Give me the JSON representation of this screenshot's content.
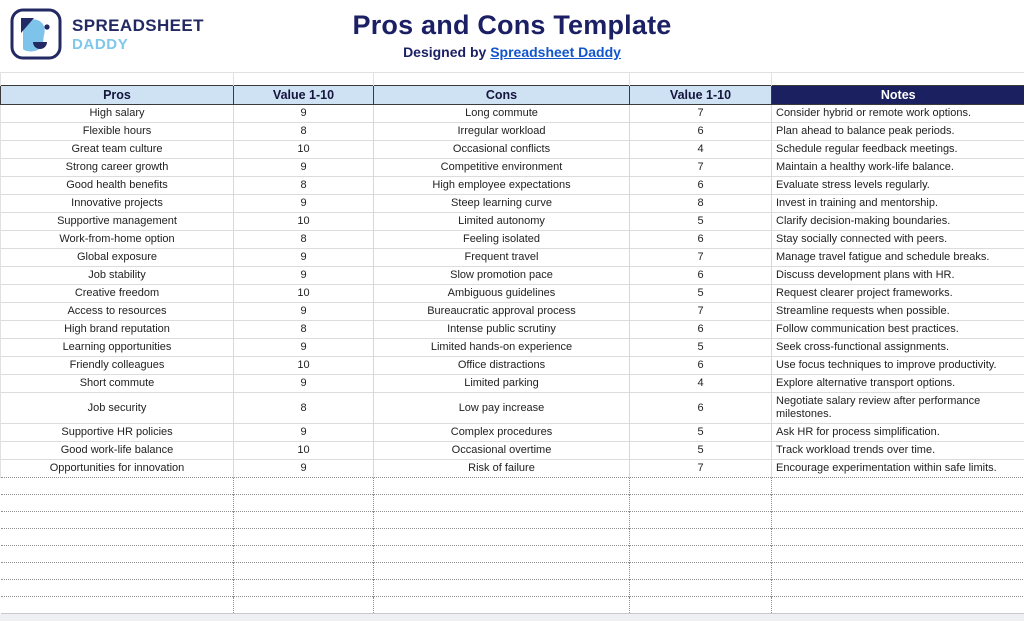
{
  "brand": {
    "line1": "SPREADSHEET",
    "line2": "DADDY",
    "logo": "dog-face-icon"
  },
  "header": {
    "title": "Pros and Cons Template",
    "designed_prefix": "Designed by ",
    "designed_link": "Spreadsheet Daddy"
  },
  "table": {
    "columns": [
      "Pros",
      "Value 1-10",
      "Cons",
      "Value 1-10",
      "Notes"
    ],
    "rows": [
      {
        "pro": "High salary",
        "pro_value": "9",
        "con": "Long commute",
        "con_value": "7",
        "note": "Consider hybrid or remote work options."
      },
      {
        "pro": "Flexible hours",
        "pro_value": "8",
        "con": "Irregular workload",
        "con_value": "6",
        "note": "Plan ahead to balance peak periods."
      },
      {
        "pro": "Great team culture",
        "pro_value": "10",
        "con": "Occasional conflicts",
        "con_value": "4",
        "note": "Schedule regular feedback meetings."
      },
      {
        "pro": "Strong career growth",
        "pro_value": "9",
        "con": "Competitive environment",
        "con_value": "7",
        "note": "Maintain a healthy work-life balance."
      },
      {
        "pro": "Good health benefits",
        "pro_value": "8",
        "con": "High employee expectations",
        "con_value": "6",
        "note": "Evaluate stress levels regularly."
      },
      {
        "pro": "Innovative projects",
        "pro_value": "9",
        "con": "Steep learning curve",
        "con_value": "8",
        "note": "Invest in training and mentorship."
      },
      {
        "pro": "Supportive management",
        "pro_value": "10",
        "con": "Limited autonomy",
        "con_value": "5",
        "note": "Clarify decision-making boundaries."
      },
      {
        "pro": "Work-from-home option",
        "pro_value": "8",
        "con": "Feeling isolated",
        "con_value": "6",
        "note": "Stay socially connected with peers."
      },
      {
        "pro": "Global exposure",
        "pro_value": "9",
        "con": "Frequent travel",
        "con_value": "7",
        "note": "Manage travel fatigue and schedule breaks."
      },
      {
        "pro": "Job stability",
        "pro_value": "9",
        "con": "Slow promotion pace",
        "con_value": "6",
        "note": "Discuss development plans with HR."
      },
      {
        "pro": "Creative freedom",
        "pro_value": "10",
        "con": "Ambiguous guidelines",
        "con_value": "5",
        "note": "Request clearer project frameworks."
      },
      {
        "pro": "Access to resources",
        "pro_value": "9",
        "con": "Bureaucratic approval process",
        "con_value": "7",
        "note": "Streamline requests when possible."
      },
      {
        "pro": "High brand reputation",
        "pro_value": "8",
        "con": "Intense public scrutiny",
        "con_value": "6",
        "note": "Follow communication best practices."
      },
      {
        "pro": "Learning opportunities",
        "pro_value": "9",
        "con": "Limited hands-on experience",
        "con_value": "5",
        "note": "Seek cross-functional assignments."
      },
      {
        "pro": "Friendly colleagues",
        "pro_value": "10",
        "con": "Office distractions",
        "con_value": "6",
        "note": "Use focus techniques to improve productivity."
      },
      {
        "pro": "Short commute",
        "pro_value": "9",
        "con": "Limited parking",
        "con_value": "4",
        "note": "Explore alternative transport options."
      },
      {
        "pro": "Job security",
        "pro_value": "8",
        "con": "Low pay increase",
        "con_value": "6",
        "note": "Negotiate salary review after performance milestones."
      },
      {
        "pro": "Supportive HR policies",
        "pro_value": "9",
        "con": "Complex procedures",
        "con_value": "5",
        "note": "Ask HR for process simplification."
      },
      {
        "pro": "Good work-life balance",
        "pro_value": "10",
        "con": "Occasional overtime",
        "con_value": "5",
        "note": "Track workload trends over time."
      },
      {
        "pro": "Opportunities for innovation",
        "pro_value": "9",
        "con": "Risk of failure",
        "con_value": "7",
        "note": "Encourage experimentation within safe limits."
      }
    ],
    "empty_row_count": 8
  },
  "colors": {
    "accent_navy": "#1b2060",
    "header_blue": "#cfe2f3",
    "link_blue": "#1155cc",
    "logo_light_blue": "#7ec3ea"
  }
}
